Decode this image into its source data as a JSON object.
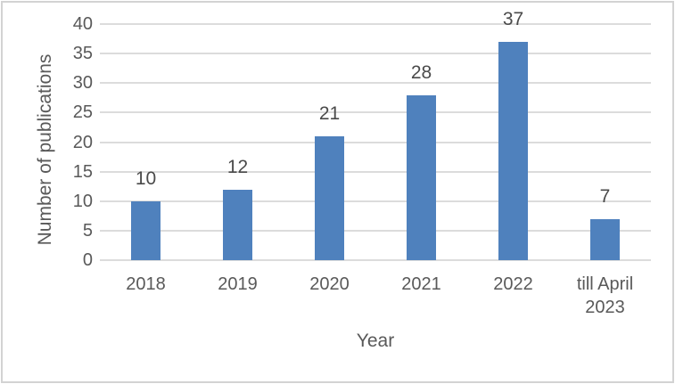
{
  "chart_data": {
    "type": "bar",
    "categories": [
      "2018",
      "2019",
      "2020",
      "2021",
      "2022",
      "till April 2023"
    ],
    "values": [
      10,
      12,
      21,
      28,
      37,
      7
    ],
    "title": "",
    "xlabel": "Year",
    "ylabel": "Number of publications",
    "ylim": [
      0,
      40
    ],
    "yticks": [
      0,
      5,
      10,
      15,
      20,
      25,
      30,
      35,
      40
    ],
    "grid": true,
    "legend_position": "none",
    "data_labels_shown": true,
    "colors": {
      "bar": "#4f81bd",
      "gridline": "#dcdcdc",
      "axis_text": "#595959",
      "data_label_text": "#4a4a4a",
      "frame_border": "#d3d3d3",
      "background": "#ffffff"
    }
  }
}
